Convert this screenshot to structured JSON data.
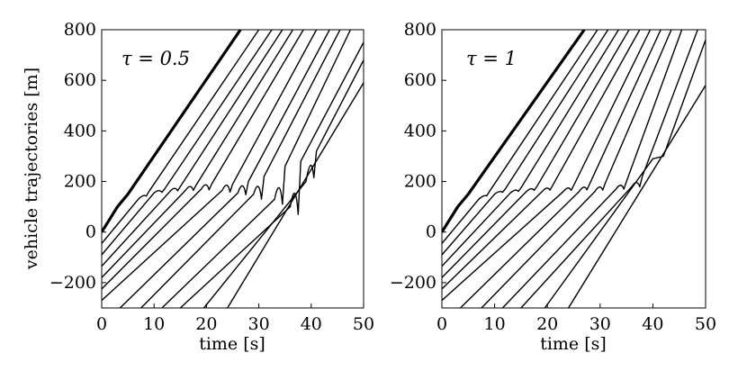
{
  "chart_data": [
    {
      "type": "line",
      "annotation": "τ = 0.5",
      "xlabel": "time [s]",
      "ylabel": "vehicle trajectories [m]",
      "xlim": [
        0,
        50
      ],
      "ylim": [
        -300,
        800
      ],
      "xticks": [
        "0",
        "10",
        "20",
        "30",
        "40",
        "50"
      ],
      "yticks": [
        "-200",
        "0",
        "200",
        "400",
        "600",
        "800"
      ],
      "grid": false,
      "leader": {
        "x": [
          0,
          3,
          5,
          26.5
        ],
        "y": [
          0,
          100,
          150,
          800
        ]
      },
      "followers": [
        {
          "x": [
            0,
            7,
            9,
            30.0
          ],
          "y": [
            -45,
            130,
            160,
            800
          ],
          "wiggle": {
            "x": 8.0,
            "y": 145,
            "amp": 6
          }
        },
        {
          "x": [
            0,
            10,
            12,
            32.5
          ],
          "y": [
            -90,
            155,
            170,
            800
          ],
          "wiggle": {
            "x": 11.0,
            "y": 162,
            "amp": 10
          }
        },
        {
          "x": [
            0,
            13,
            15,
            34.5
          ],
          "y": [
            -135,
            160,
            180,
            800
          ],
          "wiggle": {
            "x": 14.0,
            "y": 170,
            "amp": 14
          }
        },
        {
          "x": [
            0,
            16,
            18,
            36.5
          ],
          "y": [
            -180,
            165,
            185,
            800
          ],
          "wiggle": {
            "x": 17.0,
            "y": 175,
            "amp": 20
          }
        },
        {
          "x": [
            0,
            19,
            21,
            38.5
          ],
          "y": [
            -225,
            170,
            190,
            800
          ],
          "wiggle": {
            "x": 20.0,
            "y": 180,
            "amp": 26
          }
        },
        {
          "x": [
            0,
            23,
            25,
            41.0
          ],
          "y": [
            -270,
            165,
            190,
            800
          ],
          "wiggle": {
            "x": 24.0,
            "y": 175,
            "amp": 34
          }
        },
        {
          "x": [
            3.5,
            26,
            28,
            43.5
          ],
          "y": [
            -300,
            155,
            200,
            800
          ],
          "wiggle": {
            "x": 27.0,
            "y": 170,
            "amp": 44
          }
        },
        {
          "x": [
            7.5,
            29,
            31,
            45.5
          ],
          "y": [
            -300,
            150,
            220,
            800
          ],
          "wiggle": {
            "x": 30.0,
            "y": 160,
            "amp": 60
          }
        },
        {
          "x": [
            11.5,
            33,
            35,
            47.5
          ],
          "y": [
            -300,
            130,
            260,
            800
          ],
          "wiggle": {
            "x": 34.0,
            "y": 150,
            "amp": 80
          }
        },
        {
          "x": [
            15.0,
            36,
            38,
            50.0
          ],
          "y": [
            -300,
            100,
            280,
            750
          ],
          "wiggle": {
            "x": 37.0,
            "y": 120,
            "amp": 100
          }
        },
        {
          "x": [
            19.5,
            39,
            41,
            50.0
          ],
          "y": [
            -300,
            200,
            320,
            680
          ],
          "wiggle": {
            "x": 40.0,
            "y": 250,
            "amp": 70
          }
        },
        {
          "x": [
            24.0,
            50.0
          ],
          "y": [
            -300,
            590
          ]
        }
      ]
    },
    {
      "type": "line",
      "annotation": "τ = 1",
      "xlabel": "time [s]",
      "ylabel": "",
      "xlim": [
        0,
        50
      ],
      "ylim": [
        -300,
        800
      ],
      "xticks": [
        "0",
        "10",
        "20",
        "30",
        "40",
        "50"
      ],
      "yticks": [
        "-200",
        "0",
        "200",
        "400",
        "600",
        "800"
      ],
      "grid": false,
      "leader": {
        "x": [
          0,
          3,
          5,
          27.0
        ],
        "y": [
          0,
          100,
          150,
          800
        ]
      },
      "followers": [
        {
          "x": [
            0,
            7,
            9,
            29.5
          ],
          "y": [
            -45,
            130,
            160,
            800
          ],
          "wiggle": {
            "x": 8.0,
            "y": 145,
            "amp": 4
          }
        },
        {
          "x": [
            0,
            10,
            12,
            31.5
          ],
          "y": [
            -90,
            150,
            170,
            800
          ],
          "wiggle": {
            "x": 11.0,
            "y": 160,
            "amp": 6
          }
        },
        {
          "x": [
            0,
            13,
            15,
            33.5
          ],
          "y": [
            -135,
            155,
            175,
            800
          ],
          "wiggle": {
            "x": 14.0,
            "y": 165,
            "amp": 8
          }
        },
        {
          "x": [
            0,
            16,
            18,
            35.5
          ],
          "y": [
            -180,
            160,
            180,
            800
          ],
          "wiggle": {
            "x": 17.0,
            "y": 170,
            "amp": 10
          }
        },
        {
          "x": [
            0,
            19,
            21,
            37.5
          ],
          "y": [
            -225,
            160,
            185,
            800
          ],
          "wiggle": {
            "x": 20.0,
            "y": 172,
            "amp": 12
          }
        },
        {
          "x": [
            0,
            23,
            25,
            39.5
          ],
          "y": [
            -270,
            160,
            185,
            800
          ],
          "wiggle": {
            "x": 24.0,
            "y": 172,
            "amp": 14
          }
        },
        {
          "x": [
            3.5,
            26,
            28,
            41.5
          ],
          "y": [
            -300,
            160,
            190,
            800
          ],
          "wiggle": {
            "x": 27.0,
            "y": 175,
            "amp": 16
          }
        },
        {
          "x": [
            7.5,
            29,
            31,
            43.5
          ],
          "y": [
            -300,
            160,
            195,
            800
          ],
          "wiggle": {
            "x": 30.0,
            "y": 175,
            "amp": 18
          }
        },
        {
          "x": [
            11.5,
            33,
            35,
            45.5
          ],
          "y": [
            -300,
            170,
            200,
            800
          ],
          "wiggle": {
            "x": 34.0,
            "y": 180,
            "amp": 20
          }
        },
        {
          "x": [
            15.0,
            36,
            38,
            48.5
          ],
          "y": [
            -300,
            180,
            220,
            800
          ],
          "wiggle": {
            "x": 37.0,
            "y": 190,
            "amp": 22
          }
        },
        {
          "x": [
            19.5,
            40,
            42,
            50.0
          ],
          "y": [
            -300,
            290,
            300,
            760
          ]
        },
        {
          "x": [
            24.0,
            50.0
          ],
          "y": [
            -300,
            580
          ]
        }
      ]
    }
  ]
}
